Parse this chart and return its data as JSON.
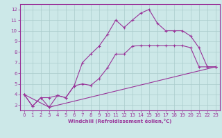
{
  "background_color": "#cce8e8",
  "grid_color": "#aacccc",
  "line_color": "#993399",
  "xlabel": "Windchill (Refroidissement éolien,°C)",
  "xlim": [
    -0.5,
    23.5
  ],
  "ylim": [
    2.5,
    12.5
  ],
  "xticks": [
    0,
    1,
    2,
    3,
    4,
    5,
    6,
    7,
    8,
    9,
    10,
    11,
    12,
    13,
    14,
    15,
    16,
    17,
    18,
    19,
    20,
    21,
    22,
    23
  ],
  "yticks": [
    3,
    4,
    5,
    6,
    7,
    8,
    9,
    10,
    11,
    12
  ],
  "line1_x": [
    0,
    1,
    2,
    3,
    4,
    5,
    6,
    7,
    8,
    9,
    10,
    11,
    12,
    13,
    14,
    15,
    16,
    17,
    18,
    19,
    20,
    21,
    22,
    23
  ],
  "line1_y": [
    4.0,
    2.9,
    3.7,
    2.8,
    3.9,
    3.7,
    4.8,
    7.0,
    7.8,
    8.55,
    9.65,
    11.0,
    10.3,
    11.0,
    11.65,
    12.0,
    10.7,
    10.0,
    10.0,
    10.0,
    9.5,
    8.4,
    6.6,
    6.6
  ],
  "line2_x": [
    0,
    1,
    2,
    3,
    4,
    5,
    6,
    7,
    8,
    9,
    10,
    11,
    12,
    13,
    14,
    15,
    16,
    17,
    18,
    19,
    20,
    21,
    22,
    23
  ],
  "line2_y": [
    4.0,
    2.9,
    3.7,
    3.7,
    3.9,
    3.7,
    4.8,
    5.0,
    4.85,
    5.5,
    6.5,
    7.8,
    7.8,
    8.55,
    8.6,
    8.6,
    8.6,
    8.6,
    8.6,
    8.6,
    8.4,
    6.6,
    6.6,
    6.6
  ],
  "line3_x": [
    0,
    3,
    23
  ],
  "line3_y": [
    4.0,
    2.8,
    6.6
  ]
}
